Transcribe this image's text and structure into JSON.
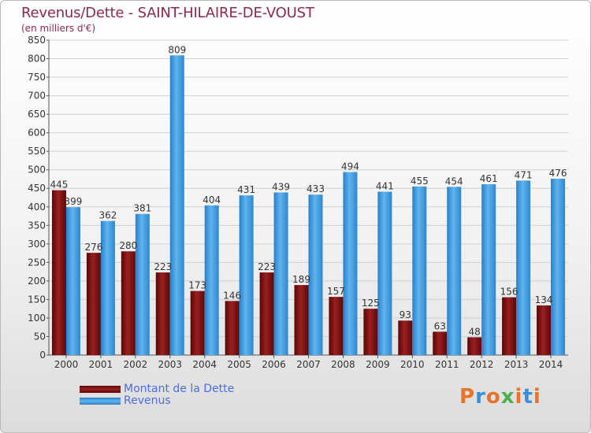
{
  "header": {
    "title": "Revenus/Dette - SAINT-HILAIRE-DE-VOUST",
    "unit": "(en milliers d'€)"
  },
  "colors": {
    "dette": "#7a1212",
    "revenus": "#4da6e8",
    "accent_text": "#8a2a4a",
    "legend_text": "#4a6ee0"
  },
  "legend": {
    "dette_label": "Montant de la Dette",
    "revenus_label": "Revenus"
  },
  "logo": {
    "text": "Proxiti"
  },
  "chart_data": {
    "type": "bar",
    "categories": [
      "2000",
      "2001",
      "2002",
      "2003",
      "2004",
      "2005",
      "2006",
      "2007",
      "2008",
      "2009",
      "2010",
      "2011",
      "2012",
      "2013",
      "2014"
    ],
    "series": [
      {
        "name": "Montant de la Dette",
        "values": [
          445,
          276,
          280,
          223,
          173,
          146,
          223,
          189,
          157,
          125,
          93,
          63,
          48,
          156,
          134
        ]
      },
      {
        "name": "Revenus",
        "values": [
          399,
          362,
          381,
          809,
          404,
          431,
          439,
          433,
          494,
          441,
          455,
          454,
          461,
          471,
          476
        ]
      }
    ],
    "ylim": [
      0,
      850
    ],
    "yticks": [
      0,
      50,
      100,
      150,
      200,
      250,
      300,
      350,
      400,
      450,
      500,
      550,
      600,
      650,
      700,
      750,
      800,
      850
    ],
    "grid": true,
    "legend_position": "bottom-left"
  }
}
